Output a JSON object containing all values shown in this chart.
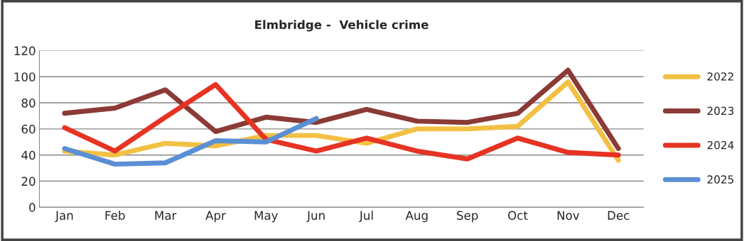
{
  "chart_data": {
    "type": "line",
    "title": "Elmbridge -  Vehicle crime",
    "categories": [
      "Jan",
      "Feb",
      "Mar",
      "Apr",
      "May",
      "Jun",
      "Jul",
      "Aug",
      "Sep",
      "Oct",
      "Nov",
      "Dec"
    ],
    "series": [
      {
        "name": "2022",
        "color": "#f2c044",
        "values": [
          43,
          40,
          49,
          47,
          55,
          55,
          49,
          60,
          60,
          62,
          96,
          36
        ]
      },
      {
        "name": "2023",
        "color": "#8b3a36",
        "values": [
          72,
          76,
          90,
          58,
          69,
          65,
          75,
          66,
          65,
          72,
          105,
          45
        ]
      },
      {
        "name": "2024",
        "color": "#e63323",
        "values": [
          61,
          43,
          69,
          94,
          52,
          43,
          53,
          43,
          37,
          53,
          42,
          40
        ]
      },
      {
        "name": "2025",
        "color": "#5b8fd4",
        "values": [
          45,
          33,
          34,
          51,
          50,
          68,
          null,
          null,
          null,
          null,
          null,
          null
        ]
      }
    ],
    "ylim": [
      0,
      120
    ],
    "yticks": [
      0,
      20,
      40,
      60,
      80,
      100,
      120
    ],
    "grid": "y",
    "legend": "right",
    "marker": "none",
    "line_style": "solid"
  }
}
